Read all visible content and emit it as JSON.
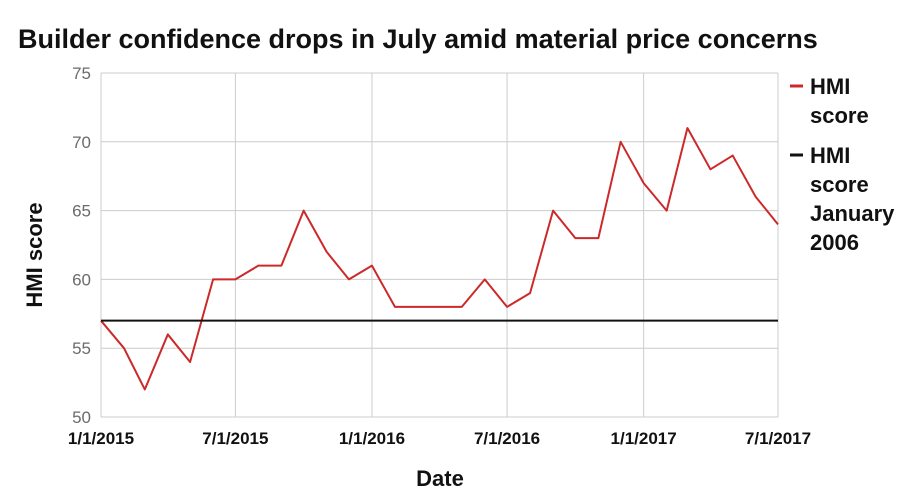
{
  "chart_data": {
    "type": "line",
    "title": "Builder confidence drops in July amid material price concerns",
    "xlabel": "Date",
    "ylabel": "HMI score",
    "ylim": [
      50,
      75
    ],
    "yticks": [
      "50",
      "55",
      "60",
      "65",
      "70",
      "75"
    ],
    "x_range": [
      "2015-01-01",
      "2017-07-01"
    ],
    "xticks": [
      {
        "label": "1/1/2015",
        "date": "2015-01-01"
      },
      {
        "label": "7/1/2015",
        "date": "2015-07-01"
      },
      {
        "label": "1/1/2016",
        "date": "2016-01-01"
      },
      {
        "label": "7/1/2016",
        "date": "2016-07-01"
      },
      {
        "label": "1/1/2017",
        "date": "2017-01-01"
      },
      {
        "label": "7/1/2017",
        "date": "2017-07-01"
      }
    ],
    "grid": true,
    "legend_position": "right",
    "series": [
      {
        "name": "HMI score",
        "color": "#cc2a2a",
        "points": [
          {
            "date": "2015-01-01",
            "value": 57
          },
          {
            "date": "2015-02-01",
            "value": 55
          },
          {
            "date": "2015-03-01",
            "value": 52
          },
          {
            "date": "2015-04-01",
            "value": 56
          },
          {
            "date": "2015-05-01",
            "value": 54
          },
          {
            "date": "2015-06-01",
            "value": 60
          },
          {
            "date": "2015-07-01",
            "value": 60
          },
          {
            "date": "2015-08-01",
            "value": 61
          },
          {
            "date": "2015-09-01",
            "value": 61
          },
          {
            "date": "2015-10-01",
            "value": 65
          },
          {
            "date": "2015-11-01",
            "value": 62
          },
          {
            "date": "2015-12-01",
            "value": 60
          },
          {
            "date": "2016-01-01",
            "value": 61
          },
          {
            "date": "2016-02-01",
            "value": 58
          },
          {
            "date": "2016-03-01",
            "value": 58
          },
          {
            "date": "2016-04-01",
            "value": 58
          },
          {
            "date": "2016-05-01",
            "value": 58
          },
          {
            "date": "2016-06-01",
            "value": 60
          },
          {
            "date": "2016-07-01",
            "value": 58
          },
          {
            "date": "2016-08-01",
            "value": 59
          },
          {
            "date": "2016-09-01",
            "value": 65
          },
          {
            "date": "2016-10-01",
            "value": 63
          },
          {
            "date": "2016-11-01",
            "value": 63
          },
          {
            "date": "2016-12-01",
            "value": 70
          },
          {
            "date": "2017-01-01",
            "value": 67
          },
          {
            "date": "2017-02-01",
            "value": 65
          },
          {
            "date": "2017-03-01",
            "value": 71
          },
          {
            "date": "2017-04-01",
            "value": 68
          },
          {
            "date": "2017-05-01",
            "value": 69
          },
          {
            "date": "2017-06-01",
            "value": 66
          },
          {
            "date": "2017-07-01",
            "value": 64
          }
        ]
      },
      {
        "name": "HMI score January 2006",
        "legend_lines": [
          "HMI",
          "score",
          "January",
          "2006"
        ],
        "color": "#111111",
        "points": [
          {
            "date": "2015-01-01",
            "value": 57
          },
          {
            "date": "2017-07-01",
            "value": 57
          }
        ]
      }
    ],
    "legend": [
      {
        "lines": [
          "HMI",
          "score"
        ],
        "color": "#cc2a2a"
      },
      {
        "lines": [
          "HMI",
          "score",
          "January",
          "2006"
        ],
        "color": "#111111"
      }
    ]
  }
}
